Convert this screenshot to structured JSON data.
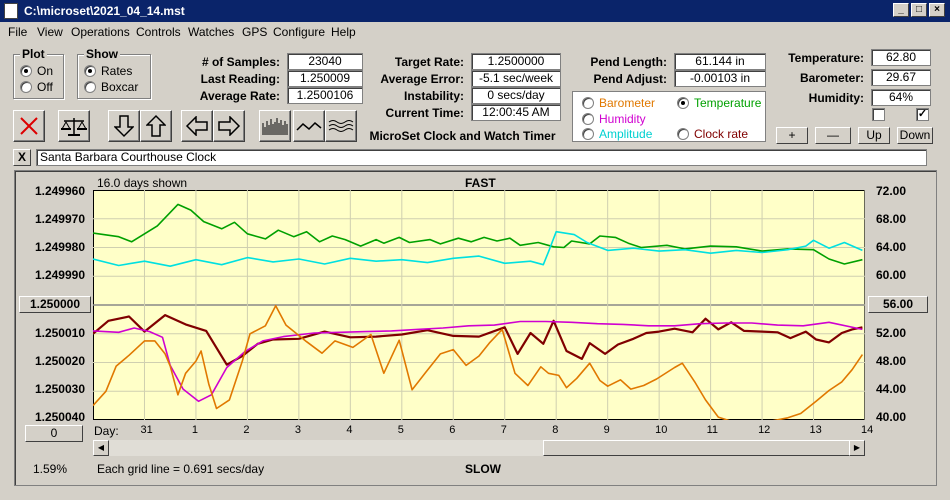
{
  "window": {
    "title": "C:\\microset\\2021_04_14.mst"
  },
  "menu": [
    "File",
    "View",
    "Operations",
    "Controls",
    "Watches",
    "GPS",
    "Configure",
    "Help"
  ],
  "plot_group": {
    "title": "Plot",
    "on": "On",
    "off": "Off",
    "selected": "On"
  },
  "show_group": {
    "title": "Show",
    "rates": "Rates",
    "boxcar": "Boxcar",
    "selected": "Rates"
  },
  "stats": {
    "samples_label": "# of Samples:",
    "samples": "23040",
    "last_label": "Last Reading:",
    "last": "1.250009",
    "avg_label": "Average Rate:",
    "avg": "1.2500106",
    "target_label": "Target Rate:",
    "target": "1.2500000",
    "avgerr_label": "Average Error:",
    "avgerr": "-5.1 sec/week",
    "instab_label": "Instability:",
    "instab": "0 secs/day",
    "time_label": "Current Time:",
    "time": "12:00:45 AM",
    "pendlen_label": "Pend Length:",
    "pendlen": "61.144 in",
    "pendadj_label": "Pend Adjust:",
    "pendadj": "-0.00103 in",
    "temp_label": "Temperature:",
    "temp": "62.80",
    "baro_label": "Barometer:",
    "baro": "29.67",
    "hum_label": "Humidity:",
    "hum": "64%"
  },
  "app_caption": "MicroSet Clock and Watch Timer",
  "sensor_group": {
    "barometer": "Barometer",
    "temperature": "Temperature",
    "humidity": "Humidity",
    "amplitude": "Amplitude",
    "clockrate": "Clock rate",
    "selected": "Temperature"
  },
  "colors": {
    "barometer": "#e07800",
    "temperature": "#00a000",
    "humidity": "#d000d0",
    "amplitude": "#00e0e0",
    "clockrate": "#800000",
    "plotbg": "#ffffc8"
  },
  "buttons": {
    "plus": "+",
    "minus": "—",
    "up": "Up",
    "down": "Down",
    "close_x": "X"
  },
  "clock_name": "Santa Barbara Courthouse Clock",
  "chart_header": {
    "days_shown": "16.0 days shown",
    "fast": "FAST",
    "slow": "SLOW",
    "grid_note": "Each grid line = 0.691 secs/day",
    "day_label": "Day:"
  },
  "left_axis": {
    "ticks": [
      "1.249960",
      "1.249970",
      "1.249980",
      "1.249990",
      "1.250000",
      "1.250010",
      "1.250020",
      "1.250030",
      "1.250040"
    ],
    "center_button": "1.250000",
    "bottom_button": "0",
    "percent": "1.59%"
  },
  "right_axis": {
    "ticks": [
      "72.00",
      "68.00",
      "64.00",
      "60.00",
      "56.00",
      "52.00",
      "48.00",
      "44.00",
      "40.00"
    ],
    "center_button": "56.00"
  },
  "chart_data": {
    "type": "line",
    "xlabel": "Day:",
    "days": [
      "31",
      "1",
      "2",
      "3",
      "4",
      "5",
      "6",
      "7",
      "8",
      "9",
      "10",
      "11",
      "12",
      "13",
      "14"
    ],
    "left_ylim": [
      1.24996,
      1.25004
    ],
    "right_ylim": [
      40,
      72
    ],
    "series": [
      {
        "name": "Temperature",
        "color": "#00a000",
        "points": [
          [
            0,
            66
          ],
          [
            1,
            65.5
          ],
          [
            1.5,
            64.8
          ],
          [
            2.5,
            67
          ],
          [
            3.3,
            70
          ],
          [
            3.8,
            69.2
          ],
          [
            4.3,
            67.6
          ],
          [
            5,
            66.6
          ],
          [
            5.5,
            67.5
          ],
          [
            6,
            65.9
          ],
          [
            6.7,
            65.2
          ],
          [
            7.2,
            66.4
          ],
          [
            7.8,
            65.5
          ],
          [
            8.3,
            66.2
          ],
          [
            8.8,
            64.8
          ],
          [
            9.3,
            65.6
          ],
          [
            9.8,
            65.1
          ],
          [
            10.4,
            64.2
          ],
          [
            11,
            65.1
          ],
          [
            11.3,
            64.6
          ],
          [
            11.9,
            65.4
          ],
          [
            12.3,
            64.7
          ],
          [
            13.1,
            65.1
          ],
          [
            13.5,
            64.5
          ],
          [
            14.2,
            65.3
          ],
          [
            14.7,
            64.8
          ],
          [
            15.2,
            65.4
          ],
          [
            15.7,
            64.9
          ],
          [
            16.2,
            65.3
          ],
          [
            16.6,
            64.3
          ],
          [
            17.3,
            64.7
          ],
          [
            17.9,
            64.1
          ],
          [
            18.3,
            64
          ],
          [
            18.6,
            64.9
          ],
          [
            19.3,
            64.5
          ],
          [
            19.7,
            65.6
          ],
          [
            20.3,
            65.4
          ],
          [
            20.8,
            64.6
          ],
          [
            21.3,
            64
          ],
          [
            22.3,
            64.3
          ],
          [
            23,
            63.8
          ],
          [
            24,
            64.2
          ],
          [
            25,
            64.1
          ],
          [
            26,
            63.5
          ],
          [
            27,
            63.8
          ],
          [
            28,
            63.7
          ],
          [
            28.6,
            62.4
          ],
          [
            29.2,
            61.7
          ],
          [
            29.9,
            62.3
          ]
        ]
      },
      {
        "name": "Amplitude",
        "color": "#00e0e0",
        "points": [
          [
            0,
            62.4
          ],
          [
            1,
            61.5
          ],
          [
            2,
            62.1
          ],
          [
            3,
            61.4
          ],
          [
            4,
            62.3
          ],
          [
            5,
            61.6
          ],
          [
            6,
            62.6
          ],
          [
            7,
            62
          ],
          [
            8,
            62.4
          ],
          [
            9,
            61.7
          ],
          [
            10,
            62.5
          ],
          [
            11,
            62.1
          ],
          [
            12,
            62.3
          ],
          [
            13,
            61.9
          ],
          [
            14,
            62.5
          ],
          [
            15,
            62.8
          ],
          [
            16,
            61.8
          ],
          [
            17,
            62.1
          ],
          [
            17.5,
            61.6
          ],
          [
            17.7,
            63.4
          ],
          [
            18,
            66.2
          ],
          [
            18.7,
            65.8
          ],
          [
            19.2,
            64.7
          ],
          [
            20,
            63.6
          ],
          [
            21,
            63.9
          ],
          [
            22,
            63.5
          ],
          [
            23,
            63.7
          ],
          [
            24,
            63.2
          ],
          [
            25,
            63.6
          ],
          [
            26,
            63.3
          ],
          [
            27,
            63.7
          ],
          [
            27.7,
            64.2
          ],
          [
            28,
            65
          ],
          [
            28.6,
            63.9
          ],
          [
            29.2,
            64.7
          ],
          [
            29.9,
            63.6
          ]
        ]
      },
      {
        "name": "Clock rate",
        "color": "#800000",
        "points": [
          [
            0,
            52
          ],
          [
            0.6,
            53.8
          ],
          [
            1.4,
            54.4
          ],
          [
            2,
            52.3
          ],
          [
            2.8,
            54.6
          ],
          [
            3.6,
            53.3
          ],
          [
            4.4,
            52.4
          ],
          [
            5.2,
            47.7
          ],
          [
            5.8,
            48.9
          ],
          [
            6.4,
            50.6
          ],
          [
            7,
            51.2
          ],
          [
            8,
            51.3
          ],
          [
            9,
            52.3
          ],
          [
            10,
            51.5
          ],
          [
            11,
            51.6
          ],
          [
            12,
            51.9
          ],
          [
            13,
            52.5
          ],
          [
            14,
            51.7
          ],
          [
            15,
            51.6
          ],
          [
            16,
            52.9
          ],
          [
            16.5,
            49.2
          ],
          [
            17,
            52.1
          ],
          [
            17.5,
            50.6
          ],
          [
            17.9,
            53.8
          ],
          [
            18.4,
            49.6
          ],
          [
            19,
            48.5
          ],
          [
            19.3,
            50.7
          ],
          [
            19.9,
            49.2
          ],
          [
            20.4,
            50.5
          ],
          [
            21,
            51.3
          ],
          [
            21.5,
            52.1
          ],
          [
            22,
            52.3
          ],
          [
            22.6,
            52.7
          ],
          [
            23.3,
            52.2
          ],
          [
            23.8,
            54.1
          ],
          [
            24.3,
            52.6
          ],
          [
            24.8,
            53.6
          ],
          [
            25.3,
            52.4
          ],
          [
            26,
            52.3
          ],
          [
            26.6,
            52.2
          ],
          [
            27.1,
            51.4
          ],
          [
            27.7,
            52.3
          ],
          [
            28.1,
            51.2
          ],
          [
            28.6,
            50.8
          ],
          [
            29.1,
            52.1
          ],
          [
            29.5,
            52.6
          ],
          [
            29.9,
            52.9
          ]
        ]
      },
      {
        "name": "Humidity",
        "color": "#d000d0",
        "points": [
          [
            0,
            52.4
          ],
          [
            1,
            52.2
          ],
          [
            1.6,
            52.8
          ],
          [
            2.2,
            52.3
          ],
          [
            2.7,
            51.5
          ],
          [
            3,
            47.6
          ],
          [
            3.5,
            44.3
          ],
          [
            4.1,
            42.6
          ],
          [
            4.6,
            43.5
          ],
          [
            5.2,
            47.3
          ],
          [
            5.9,
            49.5
          ],
          [
            6.6,
            51
          ],
          [
            7.4,
            51.6
          ],
          [
            8.6,
            52.1
          ],
          [
            9.6,
            52.2
          ],
          [
            10.6,
            52.3
          ],
          [
            11.6,
            52.4
          ],
          [
            12.6,
            52.6
          ],
          [
            13.6,
            52.8
          ],
          [
            14.6,
            53.1
          ],
          [
            15.6,
            53.2
          ],
          [
            16.6,
            53.7
          ],
          [
            17.6,
            53.7
          ],
          [
            18.6,
            53.6
          ],
          [
            19.6,
            53.4
          ],
          [
            20.6,
            53.3
          ],
          [
            21.6,
            53.1
          ],
          [
            22.6,
            53.1
          ],
          [
            23.6,
            53.4
          ],
          [
            24.6,
            53.5
          ],
          [
            25.6,
            53.5
          ],
          [
            26.6,
            53.2
          ],
          [
            27.6,
            53.1
          ],
          [
            28.6,
            53.6
          ],
          [
            29.9,
            52.6
          ]
        ]
      },
      {
        "name": "Barometer",
        "color": "#e07800",
        "points": [
          [
            0,
            42
          ],
          [
            0.5,
            44
          ],
          [
            0.9,
            47.5
          ],
          [
            1.4,
            49
          ],
          [
            2,
            51
          ],
          [
            2.4,
            51
          ],
          [
            2.8,
            49.2
          ],
          [
            3,
            47.5
          ],
          [
            3.3,
            43.5
          ],
          [
            3.6,
            46.5
          ],
          [
            4,
            48.2
          ],
          [
            4.2,
            49.6
          ],
          [
            4.5,
            45
          ],
          [
            4.8,
            41.6
          ],
          [
            5.3,
            42.8
          ],
          [
            5.8,
            48.2
          ],
          [
            6.1,
            52
          ],
          [
            6.7,
            53.1
          ],
          [
            7.1,
            55.9
          ],
          [
            7.5,
            53.2
          ],
          [
            8.3,
            50.9
          ],
          [
            8.9,
            49.3
          ],
          [
            9.4,
            51
          ],
          [
            10.1,
            50.1
          ],
          [
            10.8,
            51.9
          ],
          [
            11.3,
            46.5
          ],
          [
            11.9,
            51.1
          ],
          [
            12.4,
            44.2
          ],
          [
            12.9,
            46.5
          ],
          [
            13.5,
            49.2
          ],
          [
            14,
            49.8
          ],
          [
            14.5,
            47.6
          ],
          [
            15,
            48.9
          ],
          [
            15.4,
            50.7
          ],
          [
            15.9,
            52.6
          ],
          [
            16.4,
            46.5
          ],
          [
            16.9,
            44.8
          ],
          [
            17.4,
            47.4
          ],
          [
            17.7,
            46.5
          ],
          [
            18.1,
            46.2
          ],
          [
            18.4,
            44.5
          ],
          [
            18.8,
            45.8
          ],
          [
            19.3,
            47.9
          ],
          [
            19.7,
            45.5
          ],
          [
            20,
            44.7
          ],
          [
            20.5,
            45.6
          ],
          [
            20.9,
            44.3
          ],
          [
            21.4,
            44.8
          ],
          [
            21.9,
            45.7
          ],
          [
            22.6,
            47.3
          ],
          [
            22.9,
            47.9
          ],
          [
            23.4,
            45.2
          ],
          [
            23.8,
            42.8
          ],
          [
            24.3,
            40.4
          ],
          [
            25,
            39.6
          ],
          [
            26,
            39.6
          ],
          [
            27,
            40.3
          ],
          [
            27.5,
            40.9
          ],
          [
            28.1,
            42.6
          ],
          [
            28.6,
            44.1
          ],
          [
            29.1,
            45.3
          ],
          [
            29.5,
            47
          ],
          [
            29.9,
            49.1
          ]
        ]
      }
    ]
  }
}
